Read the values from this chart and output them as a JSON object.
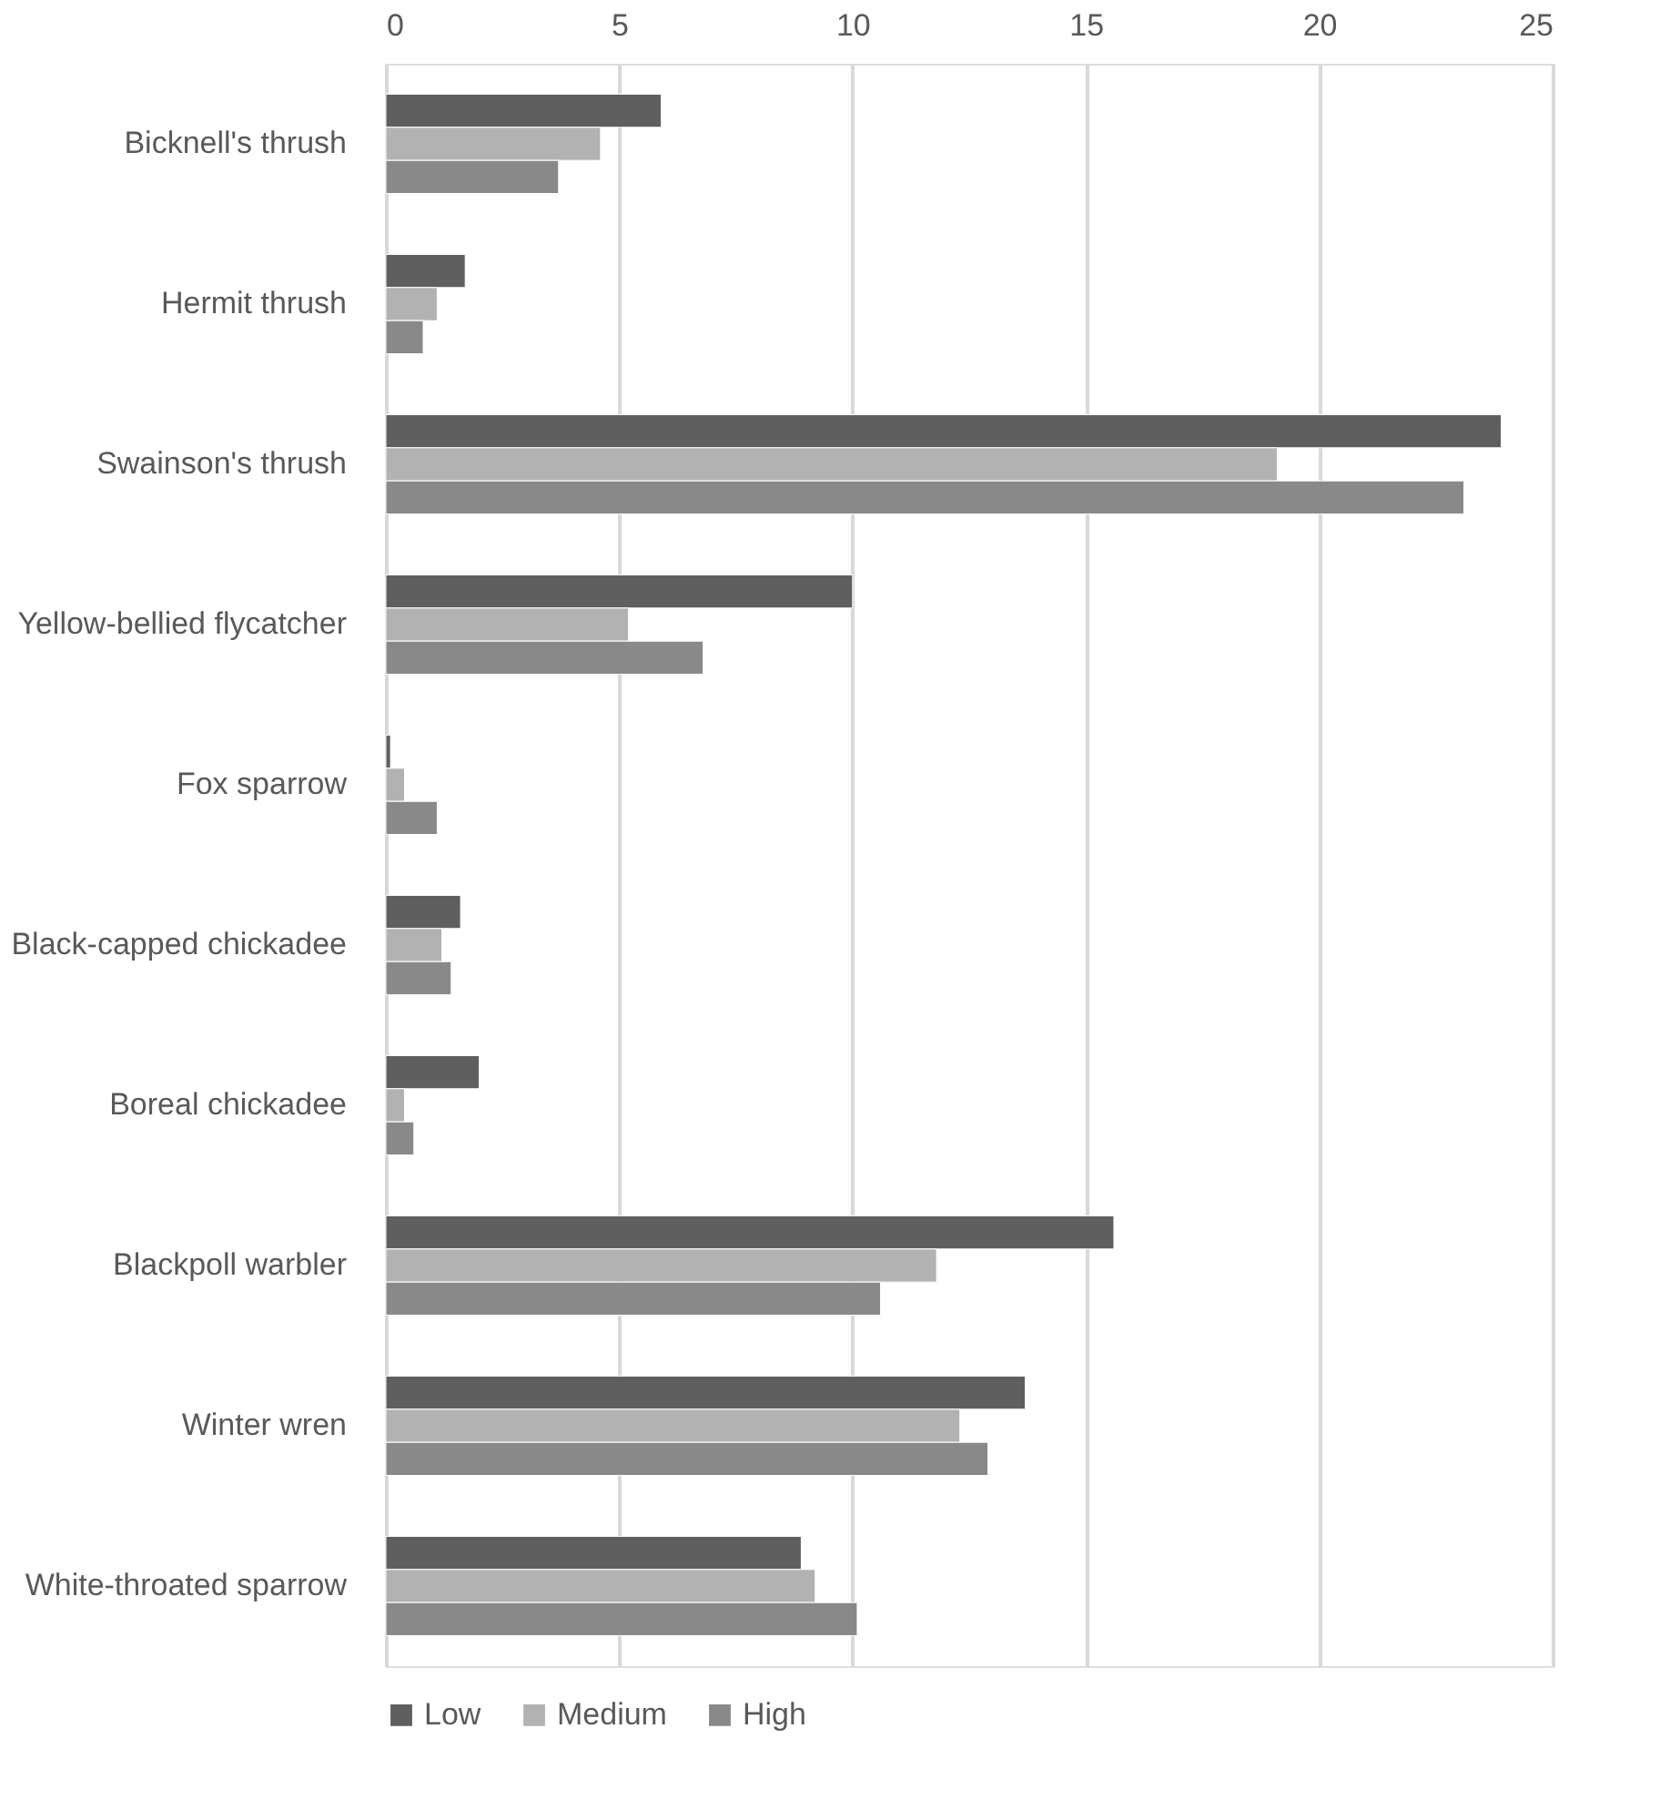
{
  "chart_data": {
    "type": "bar",
    "orientation": "horizontal",
    "categories": [
      "Bicknell's thrush",
      "Hermit thrush",
      "Swainson's thrush",
      "Yellow-bellied flycatcher",
      "Fox sparrow",
      "Black-capped chickadee",
      "Boreal chickadee",
      "Blackpoll warbler",
      "Winter wren",
      "White-throated sparrow"
    ],
    "series": [
      {
        "name": "Low",
        "color": "#5f5f5f",
        "values": [
          5.9,
          1.7,
          23.9,
          10.0,
          0.1,
          1.6,
          2.0,
          15.6,
          13.7,
          8.9
        ]
      },
      {
        "name": "Medium",
        "color": "#b2b2b2",
        "values": [
          4.6,
          1.1,
          19.1,
          5.2,
          0.4,
          1.2,
          0.4,
          11.8,
          12.3,
          9.2
        ]
      },
      {
        "name": "High",
        "color": "#898989",
        "values": [
          3.7,
          0.8,
          23.1,
          6.8,
          1.1,
          1.4,
          0.6,
          10.6,
          12.9,
          10.1
        ]
      }
    ],
    "xlim": [
      0,
      25
    ],
    "xticks": [
      0,
      5,
      10,
      15,
      20,
      25
    ],
    "grid": "x",
    "legend": "bottom"
  }
}
